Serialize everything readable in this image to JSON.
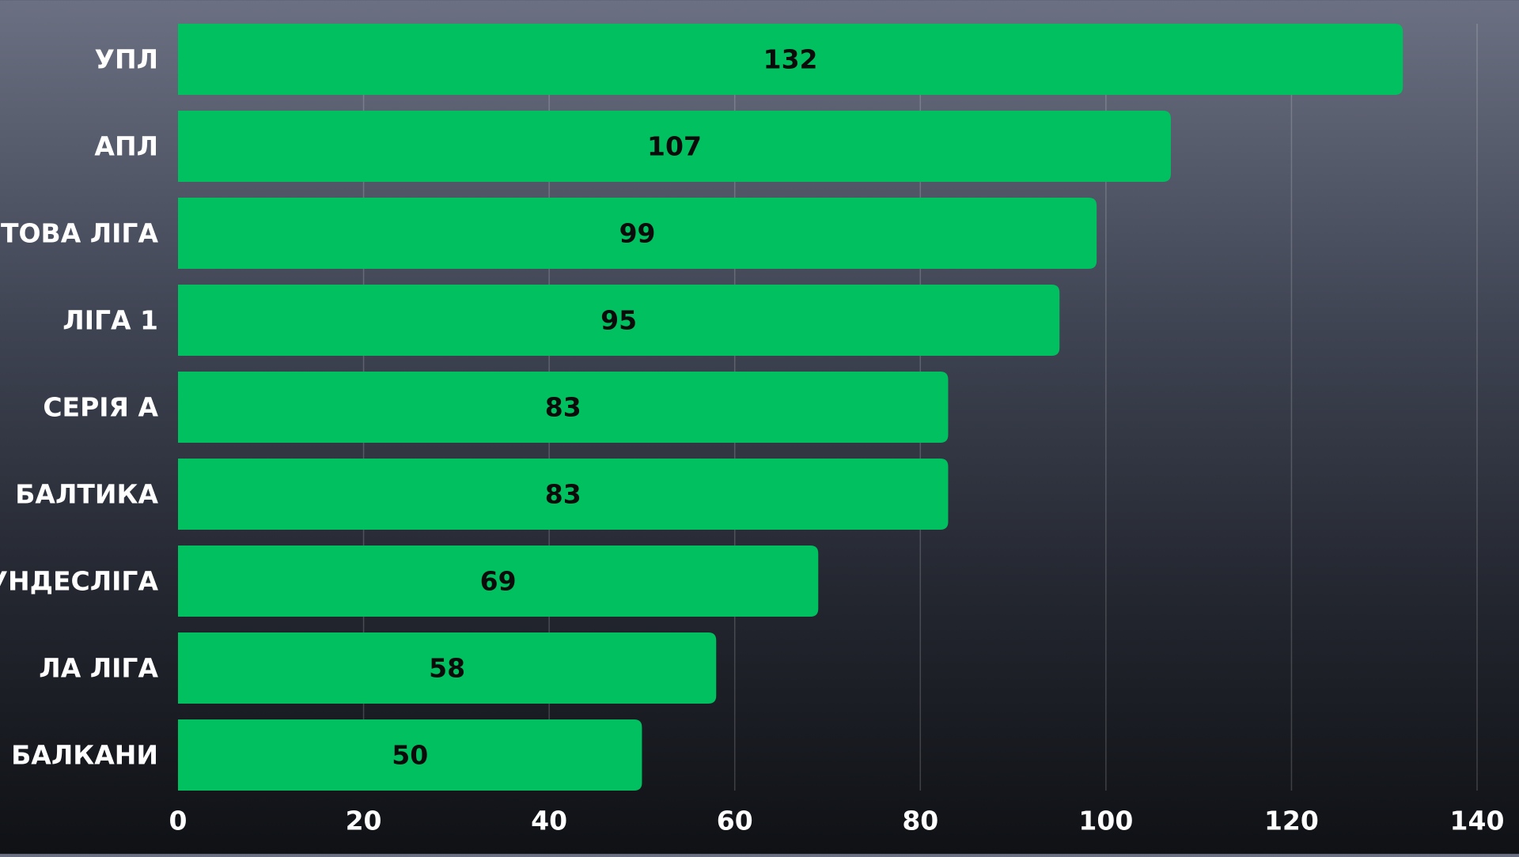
{
  "chart_data": {
    "type": "bar",
    "orientation": "horizontal",
    "title": "",
    "xlabel": "",
    "ylabel": "",
    "categories": [
      "УПЛ",
      "АПЛ",
      "СВІТОВА ЛІГА",
      "ЛІГА 1",
      "СЕРІЯ А",
      "БАЛТИКА",
      "БУНДЕСЛІГА",
      "ЛА ЛІГА",
      "БАЛКАНИ"
    ],
    "values": [
      132,
      107,
      99,
      95,
      83,
      83,
      69,
      58,
      50
    ],
    "data_labels": [
      "132",
      "107",
      "99",
      "95",
      "83",
      "83",
      "69",
      "58",
      "50"
    ],
    "xlim": [
      0,
      140
    ],
    "ticks": [
      0,
      20,
      40,
      60,
      80,
      100,
      120,
      140
    ],
    "tick_labels": [
      "0",
      "20",
      "40",
      "60",
      "80",
      "100",
      "120",
      "140"
    ],
    "grid": true,
    "legend": "none",
    "colors": {
      "bar": "#00c060",
      "grid": "#ffffff",
      "text": "#ffffff",
      "data_label": "#0b0b0b"
    }
  }
}
